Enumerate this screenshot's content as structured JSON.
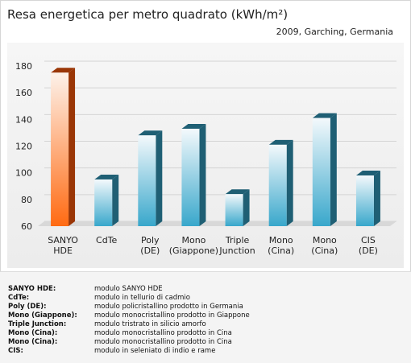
{
  "title": "Resa energetica per metro quadrato (kWh/m²)",
  "subtitle": "2009, Garching, Germania",
  "chart_data": {
    "type": "bar",
    "title": "Resa energetica per metro quadrato (kWh/m²)",
    "subtitle": "2009, Garching, Germania",
    "xlabel": "",
    "ylabel": "",
    "ylim": [
      60,
      180
    ],
    "yticks": [
      60,
      80,
      100,
      120,
      140,
      160,
      180
    ],
    "grid": true,
    "categories": [
      [
        "SANYO",
        "HDE"
      ],
      [
        "CdTe"
      ],
      [
        "Poly",
        "(DE)"
      ],
      [
        "Mono",
        "(Giappone)"
      ],
      [
        "Triple",
        "Junction"
      ],
      [
        "Mono",
        "(Cina)"
      ],
      [
        "Mono",
        "(Cina)"
      ],
      [
        "CIS",
        "(DE)"
      ]
    ],
    "values": [
      175,
      95,
      128,
      133,
      84,
      121,
      141,
      98
    ],
    "highlight_index": 0,
    "colors": {
      "highlight_top": "#fdf0e6",
      "highlight_bottom": "#ff6a12",
      "highlight_side": "#9a3606",
      "bar_top": "#f2f8fb",
      "bar_bottom": "#3aa9cc",
      "bar_side": "#1f5f74",
      "grid": "#d4d4d4"
    }
  },
  "legend": [
    {
      "key": "SANYO HDE:",
      "desc": "modulo SANYO HDE"
    },
    {
      "key": "CdTe:",
      "desc": "modulo in tellurio di cadmio"
    },
    {
      "key": "Poly (DE):",
      "desc": "modulo policristallino prodotto in Germania"
    },
    {
      "key": "Mono (Giappone):",
      "desc": "modulo monocristallino prodotto in Giappone"
    },
    {
      "key": "Triple Junction:",
      "desc": "modulo tristrato in silicio amorfo"
    },
    {
      "key": "Mono (Cina):",
      "desc": "modulo monocristallino prodotto in Cina"
    },
    {
      "key": "Mono (Cina):",
      "desc": "modulo monocristallino prodotto in Cina"
    },
    {
      "key": "CIS:",
      "desc": "modulo in seleniato di indio e rame"
    }
  ]
}
